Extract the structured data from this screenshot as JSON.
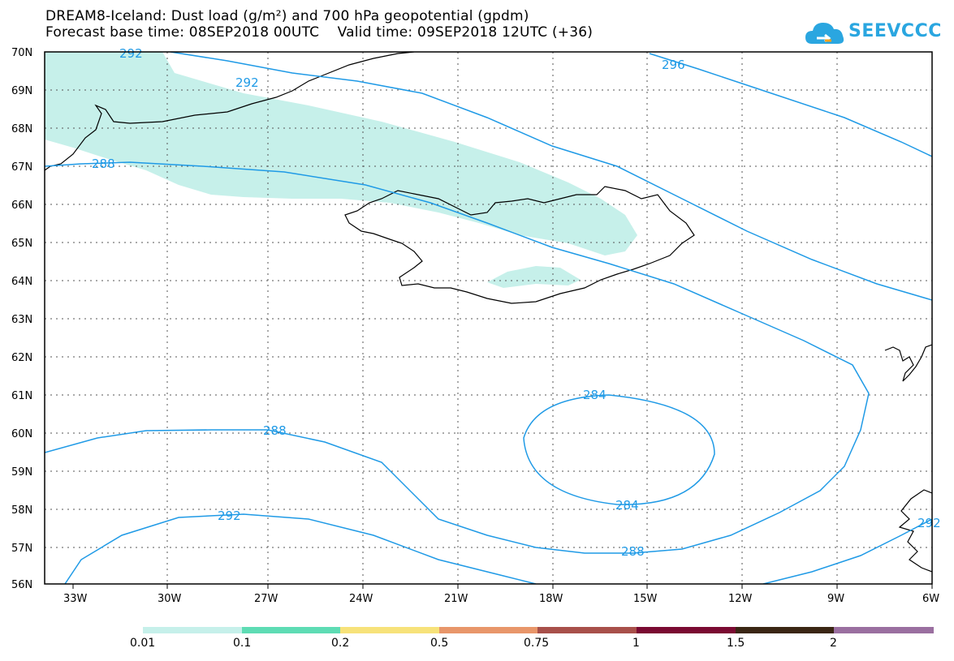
{
  "header": {
    "line1": "DREAM8-Iceland: Dust load (g/m²) and 700 hPa geopotential (gpdm)",
    "line2": "Forecast base time: 08SEP2018 00UTC    Valid time: 09SEP2018 12UTC (+36)"
  },
  "logo": {
    "text": "SEEVCCC",
    "icon": "cloud-icon"
  },
  "axes": {
    "lat_labels": [
      "70N",
      "69N",
      "68N",
      "67N",
      "66N",
      "65N",
      "64N",
      "63N",
      "62N",
      "61N",
      "60N",
      "59N",
      "58N",
      "57N",
      "56N"
    ],
    "lon_labels": [
      "33W",
      "30W",
      "27W",
      "24W",
      "21W",
      "18W",
      "15W",
      "12W",
      "9W",
      "6W"
    ]
  },
  "contour_labels": [
    "292",
    "292",
    "296",
    "288",
    "284",
    "284",
    "288",
    "288",
    "292",
    "292"
  ],
  "colorbar": {
    "labels": [
      "0.01",
      "0.1",
      "0.2",
      "0.5",
      "0.75",
      "1",
      "1.5",
      "2"
    ],
    "colors": [
      "#c6f0ea",
      "#5edcb4",
      "#f7e27a",
      "#e8966a",
      "#a8504a",
      "#7a0a32",
      "#3a2614",
      "#9a6fa0"
    ]
  },
  "colors": {
    "contour": "#1f9ae6",
    "dust_low": "#c6f0ea"
  }
}
